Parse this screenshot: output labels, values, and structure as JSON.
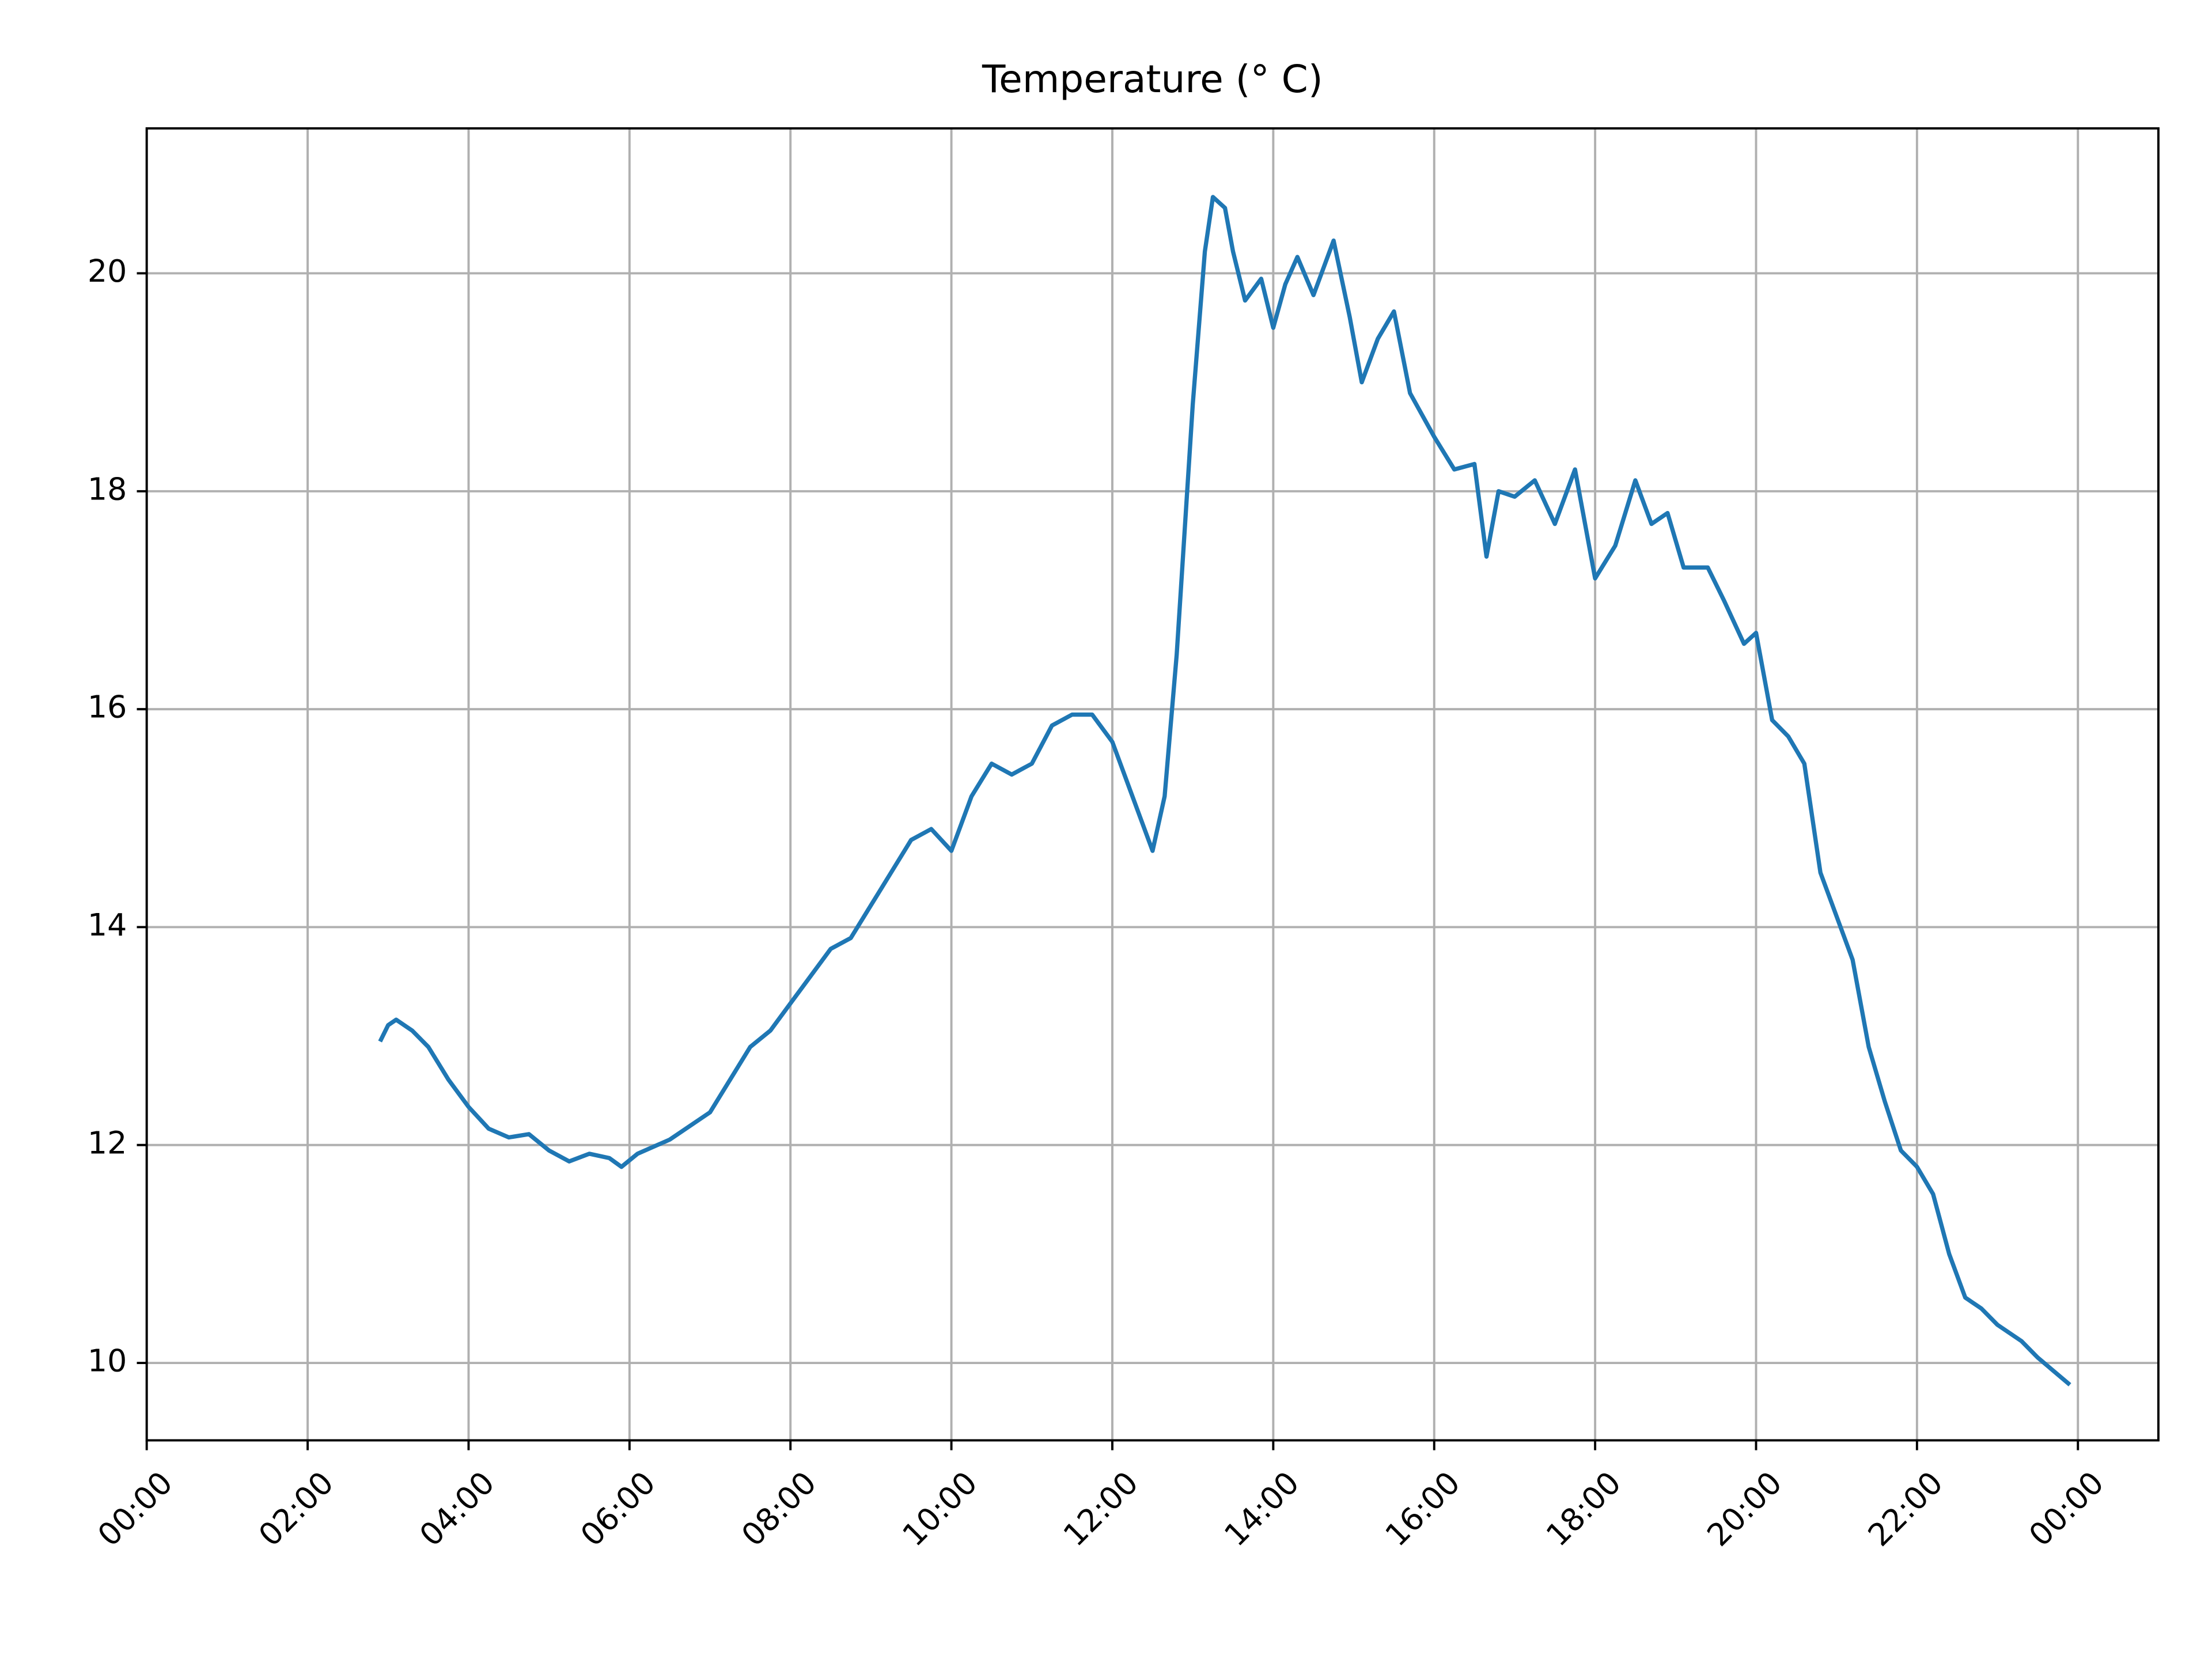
{
  "chart_data": {
    "type": "line",
    "title": "Temperature (° C)",
    "x": [
      2.9,
      3.0,
      3.1,
      3.3,
      3.5,
      3.75,
      4.0,
      4.25,
      4.5,
      4.75,
      5.0,
      5.25,
      5.5,
      5.75,
      5.9,
      6.1,
      6.5,
      7.0,
      7.25,
      7.5,
      7.75,
      8.0,
      8.25,
      8.5,
      8.75,
      9.0,
      9.25,
      9.5,
      9.75,
      10.0,
      10.25,
      10.5,
      10.75,
      11.0,
      11.25,
      11.5,
      11.75,
      12.0,
      12.25,
      12.5,
      12.65,
      12.8,
      13.0,
      13.15,
      13.25,
      13.4,
      13.5,
      13.65,
      13.85,
      14.0,
      14.15,
      14.3,
      14.5,
      14.75,
      14.95,
      15.1,
      15.3,
      15.5,
      15.7,
      16.0,
      16.25,
      16.5,
      16.65,
      16.8,
      17.0,
      17.25,
      17.5,
      17.75,
      18.0,
      18.25,
      18.5,
      18.7,
      18.9,
      19.1,
      19.4,
      19.6,
      19.85,
      20.0,
      20.2,
      20.4,
      20.6,
      20.8,
      21.0,
      21.2,
      21.4,
      21.6,
      21.8,
      22.0,
      22.2,
      22.4,
      22.6,
      22.8,
      23.0,
      23.3,
      23.5,
      23.9
    ],
    "series": [
      {
        "color": "#1f77b4",
        "values": [
          12.95,
          13.1,
          13.15,
          13.05,
          12.9,
          12.6,
          12.35,
          12.15,
          12.07,
          12.1,
          11.95,
          11.85,
          11.92,
          11.88,
          11.8,
          11.92,
          12.05,
          12.3,
          12.6,
          12.9,
          13.05,
          13.3,
          13.55,
          13.8,
          13.9,
          14.2,
          14.5,
          14.8,
          14.9,
          14.7,
          15.2,
          15.5,
          15.4,
          15.5,
          15.85,
          15.95,
          15.95,
          15.7,
          15.2,
          14.7,
          15.2,
          16.5,
          18.8,
          20.2,
          20.7,
          20.6,
          20.2,
          19.75,
          19.95,
          19.5,
          19.9,
          20.15,
          19.8,
          20.3,
          19.6,
          19.0,
          19.4,
          19.65,
          18.9,
          18.5,
          18.2,
          18.25,
          17.4,
          18.0,
          17.95,
          18.1,
          17.7,
          18.2,
          17.2,
          17.5,
          18.1,
          17.7,
          17.8,
          17.3,
          17.3,
          17.0,
          16.6,
          16.7,
          15.9,
          15.75,
          15.5,
          14.5,
          14.1,
          13.7,
          12.9,
          12.4,
          11.95,
          11.8,
          11.55,
          11.0,
          10.6,
          10.5,
          10.35,
          10.2,
          10.05,
          9.8
        ]
      }
    ],
    "xlim": [
      0,
      25
    ],
    "xticks": [
      {
        "value": 0,
        "label": "00:00"
      },
      {
        "value": 2,
        "label": "02:00"
      },
      {
        "value": 4,
        "label": "04:00"
      },
      {
        "value": 6,
        "label": "06:00"
      },
      {
        "value": 8,
        "label": "08:00"
      },
      {
        "value": 10,
        "label": "10:00"
      },
      {
        "value": 12,
        "label": "12:00"
      },
      {
        "value": 14,
        "label": "14:00"
      },
      {
        "value": 16,
        "label": "16:00"
      },
      {
        "value": 18,
        "label": "18:00"
      },
      {
        "value": 20,
        "label": "20:00"
      },
      {
        "value": 22,
        "label": "22:00"
      },
      {
        "value": 24,
        "label": "00:00"
      }
    ],
    "ylim": [
      9.29,
      21.33
    ],
    "yticks": [
      10,
      12,
      14,
      16,
      18,
      20
    ],
    "grid": true
  }
}
